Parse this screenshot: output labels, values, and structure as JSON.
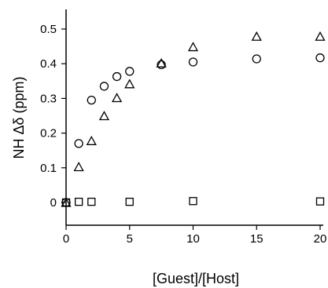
{
  "chart_data": {
    "type": "scatter",
    "title": "",
    "xlabel": "[Guest]/[Host]",
    "ylabel": "NH Δδ (ppm)",
    "xlim": [
      0,
      20
    ],
    "ylim": [
      -0.05,
      0.55
    ],
    "xticks": [
      0,
      5,
      10,
      15,
      20
    ],
    "xtick_labels": [
      "0",
      "5",
      "10",
      "15",
      "20"
    ],
    "yticks": [
      0,
      0.1,
      0.2,
      0.3,
      0.4,
      0.5
    ],
    "ytick_labels": [
      "0",
      "0.1",
      "0.2",
      "0.3",
      "0.4",
      "0.5"
    ],
    "grid": false,
    "legend": "none",
    "series": [
      {
        "marker": "circle",
        "x": [
          0,
          1,
          2,
          3,
          4,
          5,
          7.5,
          10,
          15,
          20
        ],
        "y": [
          0,
          0.17,
          0.295,
          0.335,
          0.363,
          0.378,
          0.397,
          0.405,
          0.414,
          0.417
        ]
      },
      {
        "marker": "triangle",
        "x": [
          0,
          1,
          2,
          3,
          4,
          5,
          7.5,
          10,
          15,
          20
        ],
        "y": [
          0,
          0.103,
          0.178,
          0.25,
          0.302,
          0.342,
          0.402,
          0.449,
          0.479,
          0.479
        ]
      },
      {
        "marker": "square",
        "x": [
          0,
          1,
          2,
          5,
          10,
          20
        ],
        "y": [
          0,
          0.002,
          0.002,
          0.002,
          0.004,
          0.003
        ]
      }
    ]
  }
}
